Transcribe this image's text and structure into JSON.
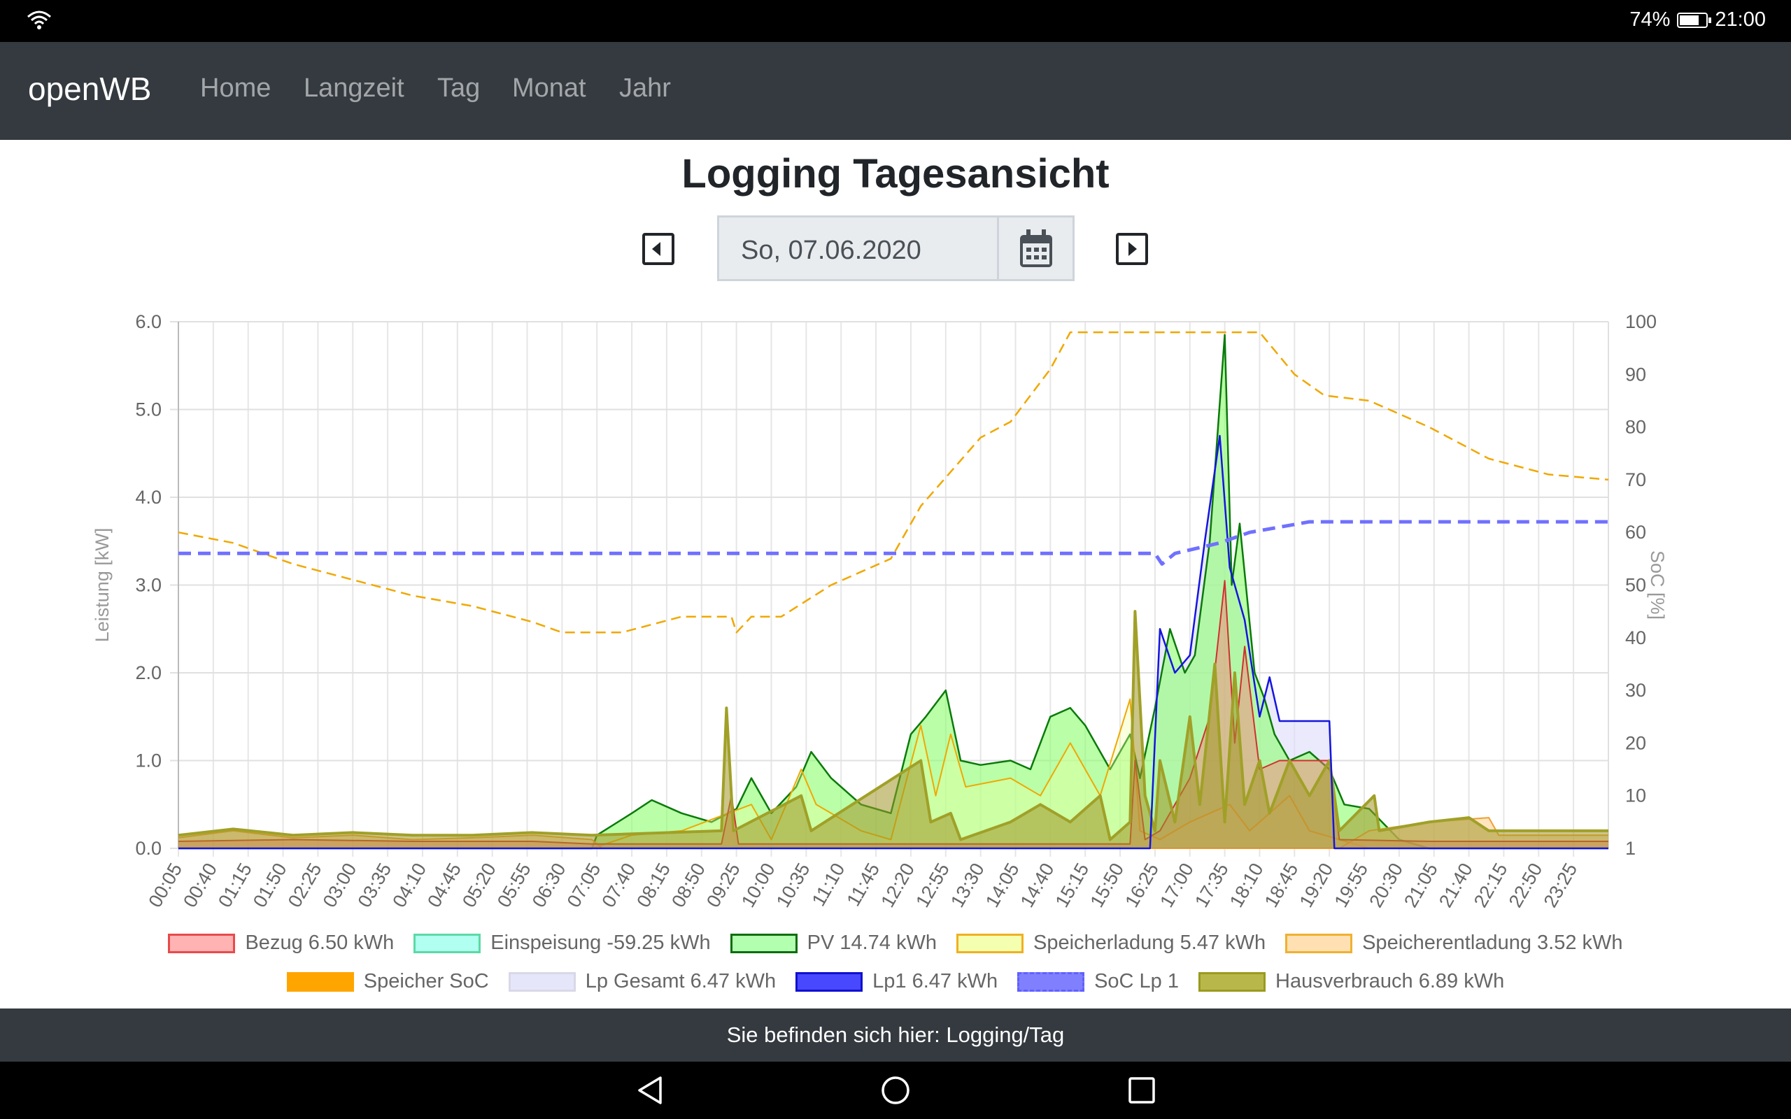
{
  "status_bar": {
    "battery": "74%",
    "battery_level": 0.74,
    "time": "21:00"
  },
  "nav": {
    "brand": "openWB",
    "items": [
      "Home",
      "Langzeit",
      "Tag",
      "Monat",
      "Jahr"
    ]
  },
  "page_title": "Logging Tagesansicht",
  "date_picker": {
    "value": "So, 07.06.2020"
  },
  "footer": "Sie befinden sich hier: Logging/Tag",
  "colors": {
    "navbar": "#343a40"
  },
  "legend": [
    {
      "label": "Bezug 6.50 kWh",
      "fill": "#ffb3b3",
      "border": "#e84a4a",
      "dashed": false
    },
    {
      "label": "Einspeisung -59.25 kWh",
      "fill": "#b0fff0",
      "border": "#5cd9a6",
      "dashed": false
    },
    {
      "label": "PV 14.74 kWh",
      "fill": "#b3ffb0",
      "border": "#0a6e0a",
      "dashed": false
    },
    {
      "label": "Speicherladung 5.47 kWh",
      "fill": "#f5ffb0",
      "border": "#f0b020",
      "dashed": false
    },
    {
      "label": "Speicherentladung 3.52 kWh",
      "fill": "#ffe0b3",
      "border": "#f0b030",
      "dashed": false
    },
    {
      "label": "Speicher SoC",
      "fill": "#ffa500",
      "border": "#ffa500",
      "dashed": true
    },
    {
      "label": "Lp Gesamt 6.47 kWh",
      "fill": "#e6e6fa",
      "border": "#d8d8e8",
      "dashed": false
    },
    {
      "label": "Lp1 6.47 kWh",
      "fill": "#4848ff",
      "border": "#1010d0",
      "dashed": false
    },
    {
      "label": "SoC Lp 1",
      "fill": "#8080ff",
      "border": "#6060ff",
      "dashed": true
    },
    {
      "label": "Hausverbrauch 6.89 kWh",
      "fill": "#b8b84a",
      "border": "#9a9a20",
      "dashed": false
    }
  ],
  "chart_data": {
    "type": "area",
    "title": "",
    "xlabel": "",
    "ylabel": "Leistung [kW]",
    "y2label": "SoC [%]",
    "ylim": [
      0,
      6
    ],
    "y2lim": [
      0,
      100
    ],
    "yticks": [
      "0.0",
      "1.0",
      "2.0",
      "3.0",
      "4.0",
      "5.0",
      "6.0"
    ],
    "y2ticks": [
      "1",
      "10",
      "20",
      "30",
      "40",
      "50",
      "60",
      "70",
      "80",
      "90",
      "100"
    ],
    "x_range": [
      "00:05",
      "24:00"
    ],
    "x_ticks": [
      "00:05",
      "00:40",
      "01:15",
      "01:50",
      "02:25",
      "03:00",
      "03:35",
      "04:10",
      "04:45",
      "05:20",
      "05:55",
      "06:30",
      "07:05",
      "07:40",
      "08:15",
      "08:50",
      "09:25",
      "10:00",
      "10:35",
      "11:10",
      "11:45",
      "12:20",
      "12:55",
      "13:30",
      "14:05",
      "14:40",
      "15:15",
      "15:50",
      "16:25",
      "17:00",
      "17:35",
      "18:10",
      "18:45",
      "19:20",
      "19:55",
      "20:30",
      "21:05",
      "21:40",
      "22:15",
      "22:50",
      "23:25"
    ],
    "series": [
      {
        "name": "Lp Gesamt",
        "axis": "left",
        "points": [
          [
            "00:05",
            0
          ],
          [
            "16:20",
            0
          ],
          [
            "16:30",
            2.5
          ],
          [
            "16:45",
            2.0
          ],
          [
            "17:00",
            2.2
          ],
          [
            "17:15",
            3.5
          ],
          [
            "17:30",
            4.7
          ],
          [
            "17:40",
            3.2
          ],
          [
            "17:55",
            2.6
          ],
          [
            "18:10",
            1.5
          ],
          [
            "18:20",
            1.95
          ],
          [
            "18:30",
            1.45
          ],
          [
            "19:20",
            1.45
          ],
          [
            "19:25",
            0
          ],
          [
            "24:00",
            0
          ]
        ]
      },
      {
        "name": "PV",
        "axis": "left",
        "points": [
          [
            "00:05",
            0
          ],
          [
            "07:00",
            0
          ],
          [
            "07:05",
            0.15
          ],
          [
            "07:40",
            0.4
          ],
          [
            "08:00",
            0.55
          ],
          [
            "08:30",
            0.4
          ],
          [
            "09:00",
            0.3
          ],
          [
            "09:25",
            0.45
          ],
          [
            "09:40",
            0.8
          ],
          [
            "10:00",
            0.4
          ],
          [
            "10:25",
            0.7
          ],
          [
            "10:40",
            1.1
          ],
          [
            "11:00",
            0.8
          ],
          [
            "11:30",
            0.5
          ],
          [
            "12:00",
            0.4
          ],
          [
            "12:20",
            1.3
          ],
          [
            "12:35",
            1.5
          ],
          [
            "12:55",
            1.8
          ],
          [
            "13:10",
            1.0
          ],
          [
            "13:30",
            0.95
          ],
          [
            "14:00",
            1.0
          ],
          [
            "14:20",
            0.9
          ],
          [
            "14:40",
            1.5
          ],
          [
            "15:00",
            1.6
          ],
          [
            "15:15",
            1.4
          ],
          [
            "15:40",
            0.9
          ],
          [
            "16:00",
            1.3
          ],
          [
            "16:10",
            0.8
          ],
          [
            "16:25",
            1.6
          ],
          [
            "16:40",
            2.5
          ],
          [
            "16:55",
            2.0
          ],
          [
            "17:05",
            2.2
          ],
          [
            "17:20",
            3.5
          ],
          [
            "17:35",
            5.85
          ],
          [
            "17:42",
            3.0
          ],
          [
            "17:50",
            3.7
          ],
          [
            "18:05",
            2.0
          ],
          [
            "18:15",
            1.7
          ],
          [
            "18:25",
            1.3
          ],
          [
            "18:40",
            1.0
          ],
          [
            "19:00",
            1.1
          ],
          [
            "19:20",
            0.9
          ],
          [
            "19:35",
            0.5
          ],
          [
            "20:00",
            0.45
          ],
          [
            "20:30",
            0.1
          ],
          [
            "21:00",
            0
          ],
          [
            "24:00",
            0
          ]
        ]
      },
      {
        "name": "Speicherladung",
        "axis": "left",
        "points": [
          [
            "00:05",
            0
          ],
          [
            "07:00",
            0
          ],
          [
            "07:40",
            0.15
          ],
          [
            "08:30",
            0.2
          ],
          [
            "09:40",
            0.5
          ],
          [
            "10:00",
            0.1
          ],
          [
            "10:30",
            0.9
          ],
          [
            "10:45",
            0.5
          ],
          [
            "11:30",
            0.2
          ],
          [
            "12:00",
            0.1
          ],
          [
            "12:30",
            1.4
          ],
          [
            "12:45",
            0.6
          ],
          [
            "13:00",
            1.3
          ],
          [
            "13:15",
            0.7
          ],
          [
            "14:00",
            0.8
          ],
          [
            "14:30",
            0.6
          ],
          [
            "15:00",
            1.2
          ],
          [
            "15:30",
            0.6
          ],
          [
            "16:00",
            1.7
          ],
          [
            "16:10",
            0.2
          ],
          [
            "16:30",
            0.1
          ],
          [
            "17:00",
            0.3
          ],
          [
            "17:40",
            0.5
          ],
          [
            "18:00",
            0.2
          ],
          [
            "18:40",
            0.6
          ],
          [
            "19:00",
            0.2
          ],
          [
            "20:00",
            0
          ],
          [
            "24:00",
            0
          ]
        ]
      },
      {
        "name": "Speicherentladung",
        "axis": "left",
        "points": [
          [
            "00:05",
            0.12
          ],
          [
            "01:00",
            0.2
          ],
          [
            "02:00",
            0.12
          ],
          [
            "03:00",
            0.15
          ],
          [
            "04:00",
            0.1
          ],
          [
            "05:00",
            0.12
          ],
          [
            "06:00",
            0.15
          ],
          [
            "07:00",
            0.1
          ],
          [
            "07:10",
            0
          ],
          [
            "19:30",
            0
          ],
          [
            "20:00",
            0.2
          ],
          [
            "21:00",
            0.3
          ],
          [
            "22:00",
            0.35
          ],
          [
            "22:10",
            0.15
          ],
          [
            "24:00",
            0.15
          ]
        ]
      },
      {
        "name": "Bezug",
        "axis": "left",
        "points": [
          [
            "00:05",
            0.08
          ],
          [
            "02:00",
            0.1
          ],
          [
            "04:00",
            0.08
          ],
          [
            "06:00",
            0.08
          ],
          [
            "07:00",
            0.05
          ],
          [
            "09:10",
            0.05
          ],
          [
            "09:20",
            0.6
          ],
          [
            "09:27",
            0.05
          ],
          [
            "16:00",
            0.05
          ],
          [
            "16:05",
            1.0
          ],
          [
            "16:15",
            0.1
          ],
          [
            "16:30",
            0.2
          ],
          [
            "17:00",
            0.8
          ],
          [
            "17:20",
            1.5
          ],
          [
            "17:35",
            3.05
          ],
          [
            "17:45",
            1.2
          ],
          [
            "17:55",
            2.3
          ],
          [
            "18:10",
            0.9
          ],
          [
            "18:30",
            1.0
          ],
          [
            "19:20",
            1.0
          ],
          [
            "19:30",
            0.1
          ],
          [
            "21:00",
            0.08
          ],
          [
            "24:00",
            0.08
          ]
        ]
      },
      {
        "name": "Hausverbrauch",
        "axis": "left",
        "points": [
          [
            "00:05",
            0.15
          ],
          [
            "01:00",
            0.22
          ],
          [
            "02:00",
            0.15
          ],
          [
            "03:00",
            0.18
          ],
          [
            "04:00",
            0.15
          ],
          [
            "05:00",
            0.15
          ],
          [
            "06:00",
            0.18
          ],
          [
            "07:00",
            0.15
          ],
          [
            "09:10",
            0.2
          ],
          [
            "09:15",
            1.6
          ],
          [
            "09:22",
            0.2
          ],
          [
            "10:30",
            0.6
          ],
          [
            "10:40",
            0.2
          ],
          [
            "12:30",
            1.0
          ],
          [
            "12:40",
            0.3
          ],
          [
            "13:00",
            0.4
          ],
          [
            "13:10",
            0.1
          ],
          [
            "14:00",
            0.3
          ],
          [
            "14:30",
            0.5
          ],
          [
            "15:00",
            0.3
          ],
          [
            "15:30",
            0.6
          ],
          [
            "15:40",
            0.1
          ],
          [
            "16:00",
            0.3
          ],
          [
            "16:05",
            2.7
          ],
          [
            "16:15",
            0.6
          ],
          [
            "16:25",
            0.2
          ],
          [
            "16:30",
            1.0
          ],
          [
            "16:45",
            0.3
          ],
          [
            "17:00",
            1.5
          ],
          [
            "17:10",
            0.5
          ],
          [
            "17:25",
            2.1
          ],
          [
            "17:35",
            0.3
          ],
          [
            "17:45",
            2.0
          ],
          [
            "17:55",
            0.5
          ],
          [
            "18:10",
            1.0
          ],
          [
            "18:20",
            0.4
          ],
          [
            "18:40",
            1.0
          ],
          [
            "19:00",
            0.6
          ],
          [
            "19:20",
            1.0
          ],
          [
            "19:30",
            0.2
          ],
          [
            "20:05",
            0.6
          ],
          [
            "20:10",
            0.2
          ],
          [
            "21:00",
            0.3
          ],
          [
            "21:40",
            0.35
          ],
          [
            "22:00",
            0.2
          ],
          [
            "24:00",
            0.2
          ]
        ]
      },
      {
        "name": "Lp1",
        "axis": "left",
        "points": [
          [
            "00:05",
            0
          ],
          [
            "16:20",
            0
          ],
          [
            "16:30",
            2.5
          ],
          [
            "16:45",
            2.0
          ],
          [
            "17:00",
            2.2
          ],
          [
            "17:15",
            3.5
          ],
          [
            "17:30",
            4.7
          ],
          [
            "17:40",
            3.2
          ],
          [
            "17:55",
            2.6
          ],
          [
            "18:10",
            1.5
          ],
          [
            "18:20",
            1.95
          ],
          [
            "18:30",
            1.45
          ],
          [
            "19:20",
            1.45
          ],
          [
            "19:25",
            0
          ],
          [
            "24:00",
            0
          ]
        ]
      },
      {
        "name": "Speicher SoC",
        "axis": "right",
        "points": [
          [
            "00:05",
            60
          ],
          [
            "01:00",
            58
          ],
          [
            "02:00",
            54
          ],
          [
            "03:00",
            51
          ],
          [
            "04:00",
            48
          ],
          [
            "05:00",
            46
          ],
          [
            "06:00",
            43
          ],
          [
            "06:30",
            41
          ],
          [
            "07:30",
            41
          ],
          [
            "08:30",
            44
          ],
          [
            "09:20",
            44
          ],
          [
            "09:25",
            41
          ],
          [
            "09:40",
            44
          ],
          [
            "10:10",
            44
          ],
          [
            "11:00",
            50
          ],
          [
            "12:00",
            55
          ],
          [
            "12:30",
            65
          ],
          [
            "13:30",
            78
          ],
          [
            "14:00",
            81
          ],
          [
            "14:40",
            91
          ],
          [
            "15:00",
            98
          ],
          [
            "18:10",
            98
          ],
          [
            "18:45",
            90
          ],
          [
            "19:15",
            86
          ],
          [
            "20:00",
            85
          ],
          [
            "21:00",
            80
          ],
          [
            "22:00",
            74
          ],
          [
            "23:00",
            71
          ],
          [
            "24:00",
            70
          ]
        ]
      },
      {
        "name": "SoC Lp 1",
        "axis": "right",
        "points": [
          [
            "00:05",
            56
          ],
          [
            "16:25",
            56
          ],
          [
            "16:32",
            54
          ],
          [
            "16:45",
            56
          ],
          [
            "17:30",
            58
          ],
          [
            "18:00",
            60
          ],
          [
            "18:30",
            61
          ],
          [
            "19:00",
            62
          ],
          [
            "24:00",
            62
          ]
        ]
      }
    ]
  }
}
